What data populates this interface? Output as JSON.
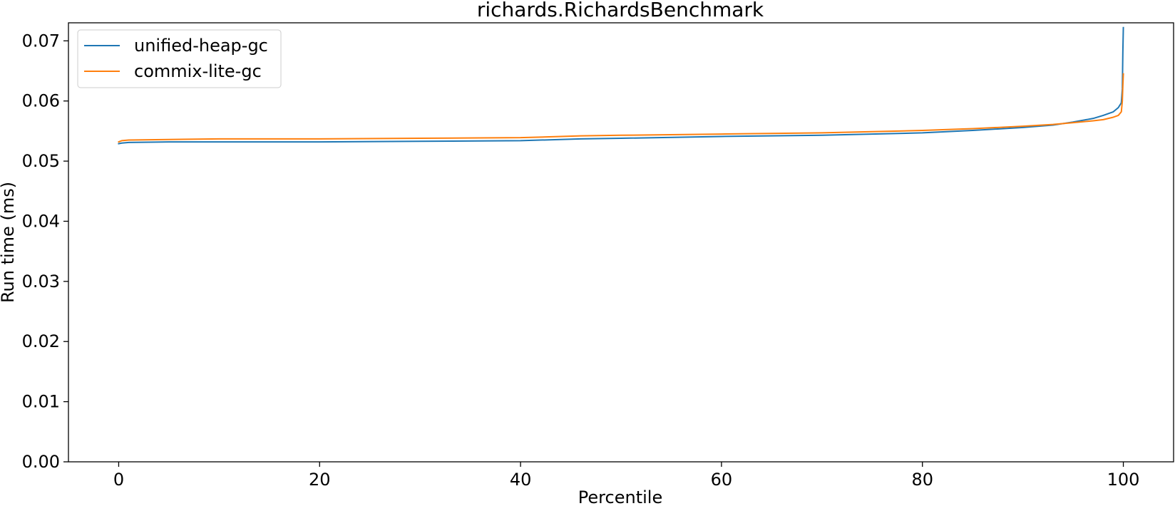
{
  "chart_data": {
    "type": "line",
    "title": "richards.RichardsBenchmark",
    "xlabel": "Percentile",
    "ylabel": "Run time (ms)",
    "xlim": [
      -5,
      105
    ],
    "ylim": [
      0.0,
      0.073
    ],
    "xticks": [
      0,
      20,
      40,
      60,
      80,
      100
    ],
    "xtick_labels": [
      "0",
      "20",
      "40",
      "60",
      "80",
      "100"
    ],
    "yticks": [
      0.0,
      0.01,
      0.02,
      0.03,
      0.04,
      0.05,
      0.06,
      0.07
    ],
    "ytick_labels": [
      "0.00",
      "0.01",
      "0.02",
      "0.03",
      "0.04",
      "0.05",
      "0.06",
      "0.07"
    ],
    "grid": false,
    "legend_position": "upper-left",
    "series": [
      {
        "name": "unified-heap-gc",
        "color": "#1f77b4",
        "x": [
          0,
          0.3,
          1,
          5,
          10,
          20,
          30,
          40,
          42,
          46,
          50,
          60,
          70,
          80,
          85,
          90,
          93,
          95,
          97,
          98,
          99,
          99.5,
          99.8,
          99.9,
          99.95,
          100
        ],
        "y": [
          0.0529,
          0.053,
          0.0531,
          0.0532,
          0.0532,
          0.0532,
          0.0533,
          0.0534,
          0.0535,
          0.0537,
          0.0538,
          0.0541,
          0.0543,
          0.0547,
          0.0551,
          0.0556,
          0.056,
          0.0565,
          0.0571,
          0.0576,
          0.0582,
          0.0589,
          0.0597,
          0.062,
          0.068,
          0.0722
        ]
      },
      {
        "name": "commix-lite-gc",
        "color": "#ff7f0e",
        "x": [
          0,
          0.3,
          1,
          5,
          10,
          20,
          30,
          40,
          42,
          46,
          50,
          60,
          70,
          80,
          85,
          90,
          93,
          95,
          97,
          98,
          99,
          99.5,
          99.8,
          99.9,
          99.95,
          100
        ],
        "y": [
          0.0532,
          0.0534,
          0.0535,
          0.0536,
          0.0537,
          0.0537,
          0.0538,
          0.0539,
          0.054,
          0.0542,
          0.0543,
          0.0545,
          0.0547,
          0.0551,
          0.0554,
          0.0558,
          0.0561,
          0.0564,
          0.0567,
          0.0569,
          0.0573,
          0.0576,
          0.0582,
          0.06,
          0.0625,
          0.0645
        ]
      }
    ]
  }
}
